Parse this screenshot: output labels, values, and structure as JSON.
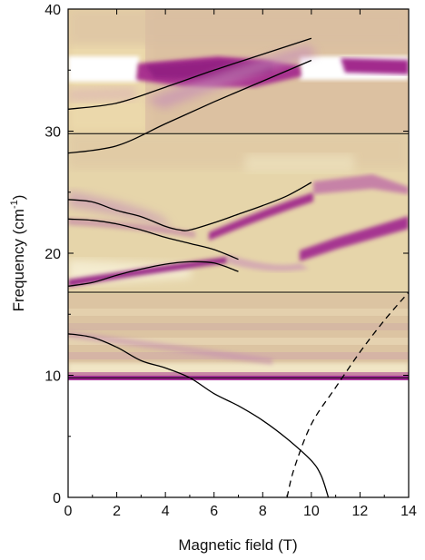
{
  "chart_data": {
    "type": "line",
    "xlabel": "Magnetic field (T)",
    "ylabel_main": "Frequency (cm",
    "ylabel_sup": "-1",
    "ylabel_end": ")",
    "xlim": [
      0,
      14
    ],
    "ylim": [
      0,
      40
    ],
    "x_ticks": [
      0,
      2,
      4,
      6,
      8,
      10,
      12,
      14
    ],
    "y_ticks": [
      0,
      10,
      20,
      30,
      40
    ],
    "panel_boundaries": [
      9.8,
      16.8,
      29.8
    ],
    "colormap": {
      "low": "#ffffff",
      "mid": "#e3cf94",
      "high": "#a2268f"
    },
    "series": [
      {
        "style": "solid",
        "x": [
          0,
          2,
          4,
          6,
          8,
          10
        ],
        "y": [
          31.8,
          32.3,
          33.6,
          35.0,
          36.3,
          37.6
        ]
      },
      {
        "style": "solid",
        "x": [
          0,
          2,
          4,
          6,
          8,
          10
        ],
        "y": [
          28.2,
          28.8,
          30.6,
          32.4,
          34.1,
          35.8
        ]
      },
      {
        "style": "solid",
        "x": [
          0,
          1,
          2,
          3,
          4,
          4.6,
          5,
          6,
          7,
          8,
          9,
          10
        ],
        "y": [
          24.4,
          24.2,
          23.5,
          23.0,
          22.2,
          21.9,
          21.9,
          22.5,
          23.2,
          23.9,
          24.7,
          25.8
        ]
      },
      {
        "style": "solid",
        "x": [
          0,
          1,
          2,
          3,
          4,
          5,
          6,
          7
        ],
        "y": [
          22.8,
          22.7,
          22.4,
          21.9,
          21.3,
          20.8,
          20.3,
          19.5
        ]
      },
      {
        "style": "solid",
        "x": [
          0,
          1,
          2,
          3,
          4,
          5,
          6,
          7
        ],
        "y": [
          17.3,
          17.6,
          18.2,
          18.7,
          19.1,
          19.3,
          19.2,
          18.5
        ]
      },
      {
        "style": "solid",
        "x": [
          0,
          1,
          2,
          3,
          4,
          5,
          6,
          7,
          8,
          9,
          10,
          10.4,
          10.7
        ],
        "y": [
          13.4,
          13.1,
          12.3,
          11.2,
          10.6,
          9.8,
          8.5,
          7.5,
          6.3,
          4.8,
          3.0,
          1.8,
          0
        ]
      },
      {
        "style": "dashed",
        "x": [
          9,
          9.3,
          10,
          11,
          12,
          13,
          14
        ],
        "y": [
          0,
          2.4,
          6.0,
          9.0,
          11.9,
          14.5,
          16.8
        ]
      }
    ]
  }
}
